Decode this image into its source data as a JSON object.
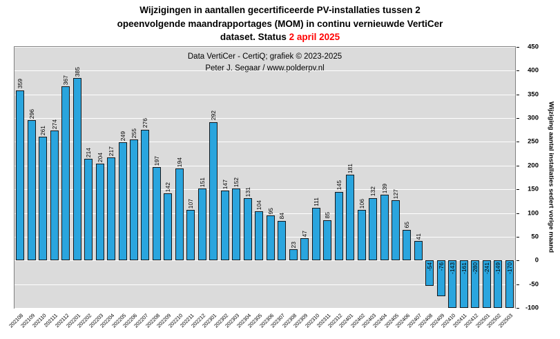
{
  "title": {
    "line1": "Wijzigingen in aantallen gecertificeerde PV-installaties tussen 2",
    "line2": "opeenvolgende maandrapportages (MOM) in continu vernieuwde VertiCer",
    "line3_prefix": "dataset. Status ",
    "line3_highlight": "2 april 2025",
    "highlight_color": "#ff0000"
  },
  "annotation": {
    "line1": "Data VertiCer - CertiQ;  grafiek  © 2023-2025",
    "line2": "Peter J. Segaar / www.polderpv.nl"
  },
  "y_axis": {
    "label": "Wijziging aantal installaties sedert vorige maand",
    "min": -100,
    "max": 450,
    "step": 50,
    "ticks": [
      450,
      400,
      350,
      300,
      250,
      200,
      150,
      100,
      50,
      0,
      -50,
      -100
    ]
  },
  "chart_data": {
    "type": "bar",
    "title": "Wijzigingen in aantallen gecertificeerde PV-installaties tussen 2 opeenvolgende maandrapportages (MOM) in continu vernieuwde VertiCer dataset. Status 2 april 2025",
    "xlabel": "",
    "ylabel": "Wijziging aantal installaties sedert vorige maand",
    "ylim": [
      -100,
      450
    ],
    "grid": true,
    "legend_position": "none",
    "bar_color": "#2aa5de",
    "bar_border_color": "#15171a",
    "plot_background": "#dbdbdb",
    "categories": [
      "202108",
      "202109",
      "202110",
      "202111",
      "202112",
      "202201",
      "202202",
      "202203",
      "202204",
      "202205",
      "202206",
      "202207",
      "202208",
      "202209",
      "202210",
      "202211",
      "202212",
      "202301",
      "202302",
      "202303",
      "202304",
      "202305",
      "202306",
      "202307",
      "202308",
      "202309",
      "202310",
      "202311",
      "202312",
      "202401",
      "202402",
      "202403",
      "202404",
      "202405",
      "202406",
      "202407",
      "202408",
      "202409",
      "202410",
      "202411",
      "202412",
      "202501",
      "202502",
      "202503"
    ],
    "values": [
      359,
      296,
      261,
      274,
      367,
      385,
      214,
      204,
      217,
      249,
      255,
      276,
      197,
      142,
      194,
      107,
      151,
      292,
      147,
      152,
      131,
      104,
      95,
      84,
      23,
      47,
      111,
      85,
      145,
      181,
      106,
      132,
      139,
      127,
      65,
      41,
      -54,
      -76,
      -143,
      -161,
      -280,
      -241,
      -149,
      -170
    ]
  }
}
